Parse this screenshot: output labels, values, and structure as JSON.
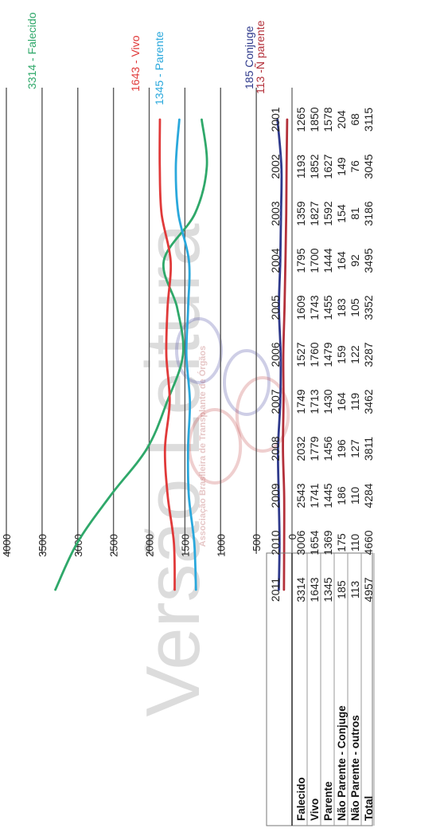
{
  "chart_data": {
    "type": "line",
    "title": "",
    "x": [
      "2001",
      "2002",
      "2003",
      "2004",
      "2005",
      "2006",
      "2007",
      "2008",
      "2009",
      "2010",
      "2011"
    ],
    "ylim": [
      0,
      4000
    ],
    "yticks": [
      0,
      500,
      1000,
      1500,
      2000,
      2500,
      3000,
      3500,
      4000
    ],
    "grid": true,
    "series": [
      {
        "key": "falecido",
        "color": "#2fa86a",
        "end_label": "3314 - Falecido",
        "values": [
          1265,
          1193,
          1359,
          1795,
          1609,
          1527,
          1749,
          2032,
          2543,
          3006,
          3314
        ]
      },
      {
        "key": "vivo",
        "color": "#e03a3a",
        "end_label": "1643 - Vivo",
        "values": [
          1850,
          1852,
          1827,
          1700,
          1743,
          1760,
          1713,
          1779,
          1741,
          1654,
          1643
        ]
      },
      {
        "key": "parente",
        "color": "#2aa8dc",
        "end_label": "1345 - Parente",
        "values": [
          1578,
          1627,
          1592,
          1444,
          1455,
          1479,
          1430,
          1456,
          1445,
          1369,
          1345
        ]
      },
      {
        "key": "conjuge",
        "color": "#2f3a8c",
        "end_label": "185 Conjuge",
        "values": [
          204,
          149,
          154,
          164,
          183,
          159,
          164,
          196,
          186,
          175,
          185
        ]
      },
      {
        "key": "outros",
        "color": "#b3303a",
        "end_label": "113 -Ñ parente",
        "values": [
          68,
          76,
          81,
          92,
          105,
          122,
          119,
          127,
          110,
          110,
          113
        ]
      }
    ],
    "table": {
      "header": [
        "2001",
        "2002",
        "2003",
        "2004",
        "2005",
        "2006",
        "2007",
        "2008",
        "2009",
        "2010",
        "2011"
      ],
      "rows": [
        {
          "label": "Falecido",
          "values": [
            "1265",
            "1193",
            "1359",
            "1795",
            "1609",
            "1527",
            "1749",
            "2032",
            "2543",
            "3006",
            "3314"
          ]
        },
        {
          "label": "Vivo",
          "values": [
            "1850",
            "1852",
            "1827",
            "1700",
            "1743",
            "1760",
            "1713",
            "1779",
            "1741",
            "1654",
            "1643"
          ]
        },
        {
          "label": "Parente",
          "values": [
            "1578",
            "1627",
            "1592",
            "1444",
            "1455",
            "1479",
            "1430",
            "1456",
            "1445",
            "1369",
            "1345"
          ]
        },
        {
          "label": "Não Parente - Conjuge",
          "values": [
            "204",
            "149",
            "154",
            "164",
            "183",
            "159",
            "164",
            "196",
            "186",
            "175",
            "185"
          ]
        },
        {
          "label": "Não Parente - outros",
          "values": [
            "68",
            "76",
            "81",
            "92",
            "105",
            "122",
            "119",
            "127",
            "110",
            "110",
            "113"
          ]
        },
        {
          "label": "Total",
          "values": [
            "3115",
            "3045",
            "3186",
            "3495",
            "3352",
            "3287",
            "3462",
            "3811",
            "4284",
            "4660",
            "4957"
          ]
        }
      ]
    },
    "watermark": [
      "Versão Leitura",
      "Associação Brasileira de Transplante de Órgãos"
    ]
  }
}
